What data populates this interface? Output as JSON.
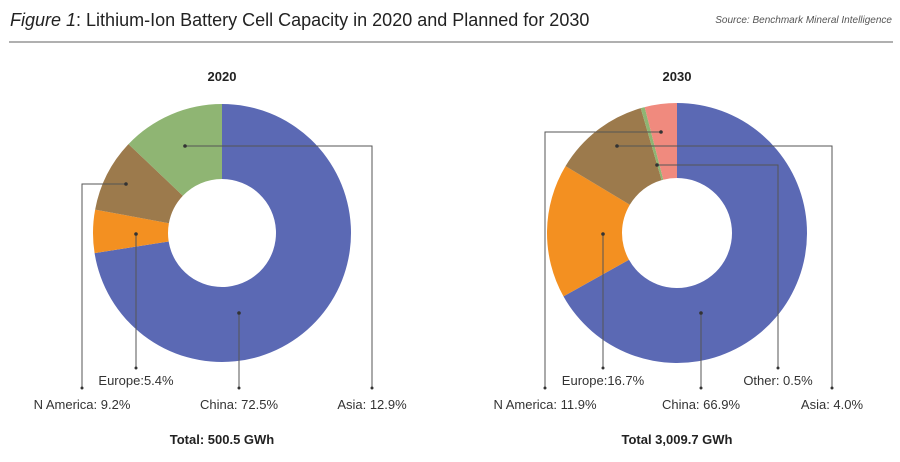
{
  "header": {
    "figure_label": "Figure 1",
    "title_rest": ": Lithium-Ion Battery Cell Capacity in 2020 and Planned for 2030",
    "source": "Source: Benchmark Mineral Intelligence"
  },
  "colors": {
    "China": "#5b69b4",
    "Europe": "#f39021",
    "N America": "#9c7a4c",
    "Asia": "#8fb573",
    "Other": "#8fb573",
    "Asia2030": "#f08a7e"
  },
  "chart_data": [
    {
      "type": "pie",
      "title": "2020",
      "donut": true,
      "start": "top",
      "direction": "clockwise",
      "slices": [
        {
          "name": "China",
          "value": 72.5,
          "label": "China: 72.5%",
          "color": "#5b69b4"
        },
        {
          "name": "Europe",
          "value": 5.4,
          "label": "Europe:5.4%",
          "color": "#f39021"
        },
        {
          "name": "N America",
          "value": 9.2,
          "label": "N America: 9.2%",
          "color": "#9c7a4c"
        },
        {
          "name": "Asia",
          "value": 12.9,
          "label": "Asia: 12.9%",
          "color": "#8fb573"
        }
      ],
      "total_label": "Total: 500.5 GWh",
      "unit": "%"
    },
    {
      "type": "pie",
      "title": "2030",
      "donut": true,
      "start": "top",
      "direction": "clockwise",
      "slices": [
        {
          "name": "China",
          "value": 66.9,
          "label": "China: 66.9%",
          "color": "#5b69b4"
        },
        {
          "name": "Europe",
          "value": 16.7,
          "label": "Europe:16.7%",
          "color": "#f39021"
        },
        {
          "name": "N America",
          "value": 11.9,
          "label": "N America: 11.9%",
          "color": "#9c7a4c"
        },
        {
          "name": "Other",
          "value": 0.5,
          "label": "Other: 0.5%",
          "color": "#8fb573"
        },
        {
          "name": "Asia",
          "value": 4.0,
          "label": "Asia: 4.0%",
          "color": "#f08a7e"
        }
      ],
      "total_label": "Total 3,009.7 GWh",
      "unit": "%"
    }
  ]
}
